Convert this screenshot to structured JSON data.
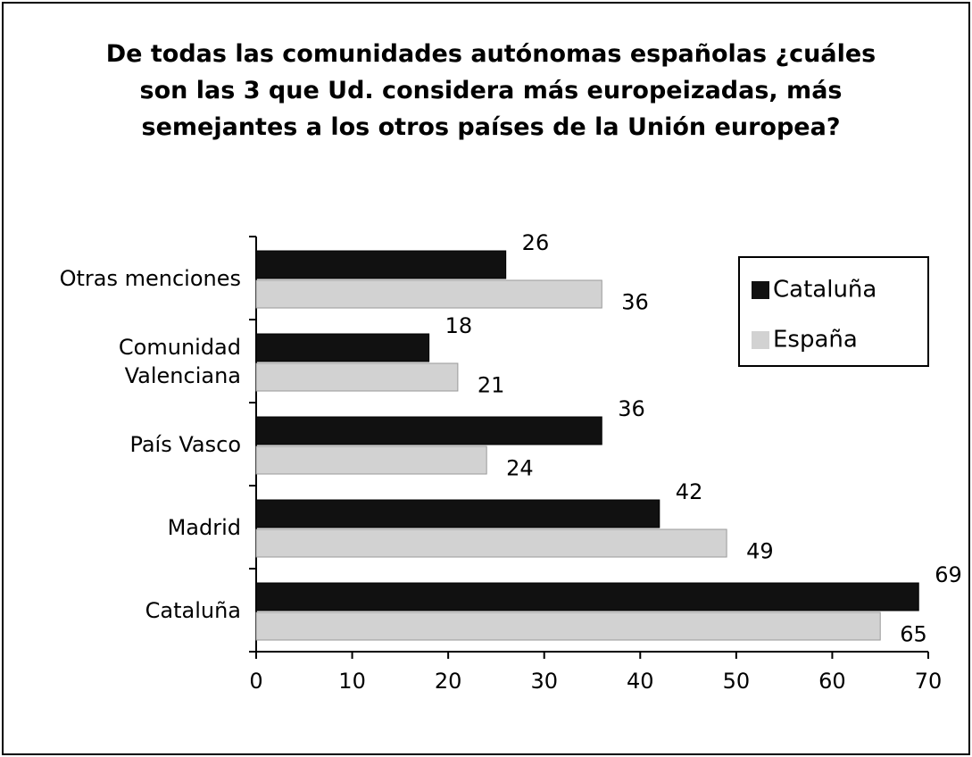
{
  "chart_data": {
    "type": "hbar",
    "title": "De todas las comunidades autónomas españolas ¿cuáles son las 3 que Ud. considera más europeizadas, más semejantes a los otros países de la Unión europea?",
    "categories": [
      "Cataluña",
      "Madrid",
      "País Vasco",
      "Comunidad\nValenciana",
      "Otras menciones"
    ],
    "series": [
      {
        "name": "Cataluña",
        "color": "#111111",
        "values": [
          69,
          42,
          36,
          18,
          26
        ]
      },
      {
        "name": "España",
        "color": "#d2d2d2",
        "values": [
          65,
          49,
          24,
          21,
          36
        ]
      }
    ],
    "xlim": [
      0,
      70
    ],
    "xticks": [
      0,
      10,
      20,
      30,
      40,
      50,
      60,
      70
    ],
    "legend": "right"
  }
}
